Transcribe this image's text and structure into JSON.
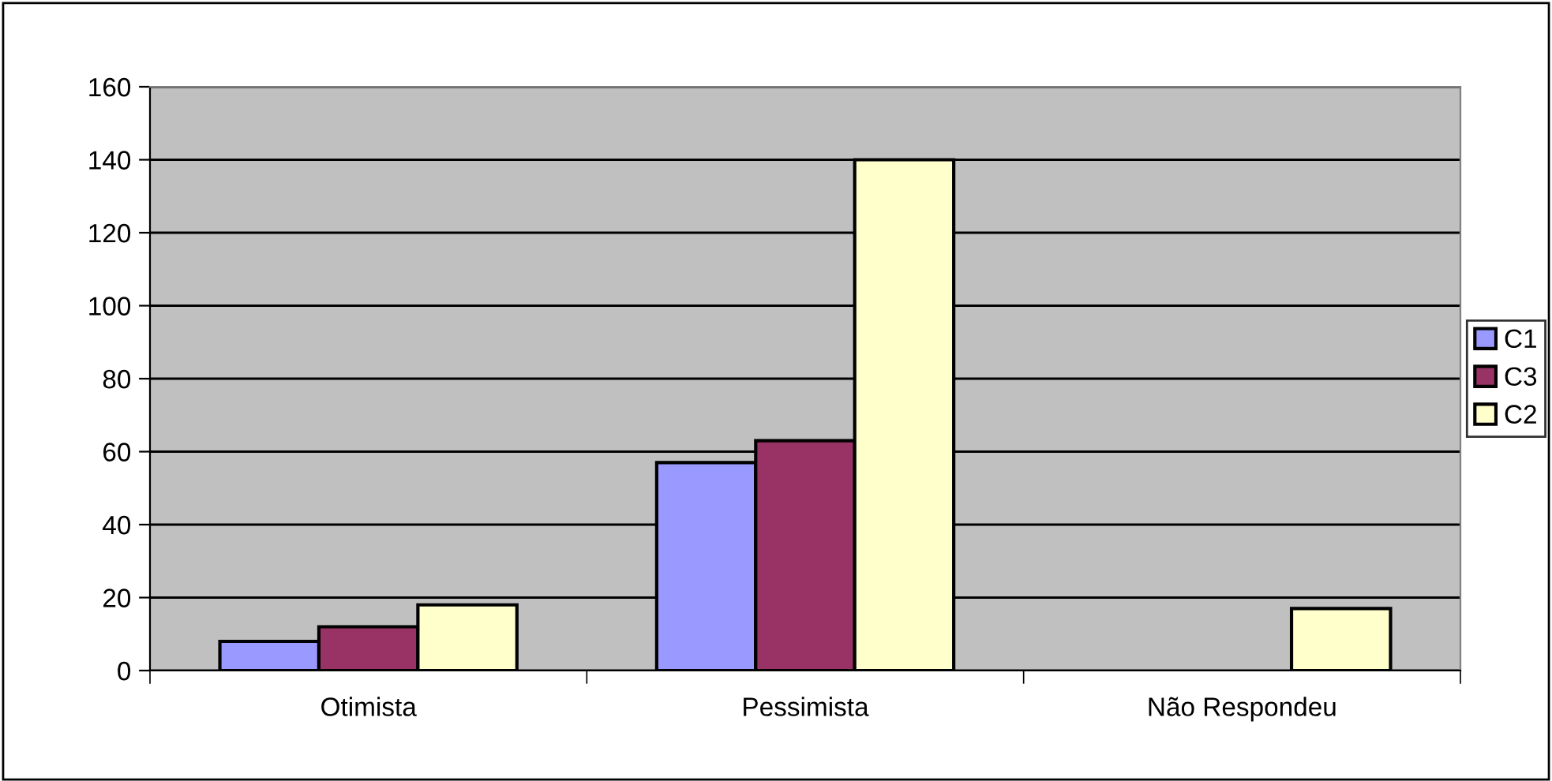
{
  "chart_data": {
    "type": "bar",
    "categories": [
      "Otimista",
      "Pessimista",
      "Não Respondeu"
    ],
    "series": [
      {
        "name": "C1",
        "color": "#9999ff",
        "values": [
          8,
          57,
          null
        ]
      },
      {
        "name": "C3",
        "color": "#993366",
        "values": [
          12,
          63,
          null
        ]
      },
      {
        "name": "C2",
        "color": "#ffffcc",
        "values": [
          18,
          140,
          17
        ]
      }
    ],
    "ylim": [
      0,
      160
    ],
    "yticks": [
      0,
      20,
      40,
      60,
      80,
      100,
      120,
      140,
      160
    ],
    "grid": "y",
    "legend": "right"
  }
}
